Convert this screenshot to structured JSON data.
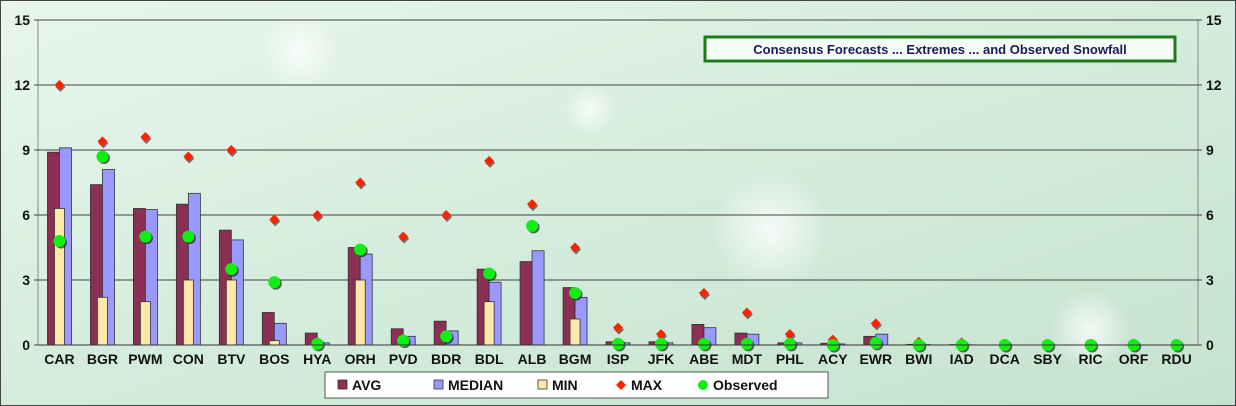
{
  "chart_data": {
    "type": "bar",
    "title": "Consensus Forecasts ... Extremes ... and Observed Snowfall",
    "categories": [
      "CAR",
      "BGR",
      "PWM",
      "CON",
      "BTV",
      "BOS",
      "HYA",
      "ORH",
      "PVD",
      "BDR",
      "BDL",
      "ALB",
      "BGM",
      "ISP",
      "JFK",
      "ABE",
      "MDT",
      "PHL",
      "ACY",
      "EWR",
      "BWI",
      "IAD",
      "DCA",
      "SBY",
      "RIC",
      "ORF",
      "RDU"
    ],
    "ylim": [
      0,
      15
    ],
    "yticks": [
      0,
      3,
      6,
      9,
      12,
      15
    ],
    "grid": true,
    "legend_position": "bottom",
    "series": [
      {
        "name": "AVG",
        "kind": "bar",
        "color": "#8b2f55",
        "values": [
          8.9,
          7.4,
          6.3,
          6.5,
          5.3,
          1.5,
          0.55,
          4.5,
          0.75,
          1.1,
          3.5,
          3.85,
          2.65,
          0.15,
          0.15,
          0.95,
          0.55,
          0.1,
          0.08,
          0.4,
          0.03,
          0.02,
          0,
          0,
          0,
          0,
          0
        ]
      },
      {
        "name": "MEDIAN",
        "kind": "bar",
        "color": "#9999ff",
        "values": [
          9.1,
          8.1,
          6.25,
          7.0,
          4.85,
          1.0,
          0.1,
          4.2,
          0.4,
          0.65,
          2.9,
          4.35,
          2.2,
          0.1,
          0.1,
          0.8,
          0.5,
          0.1,
          0.05,
          0.5,
          0.02,
          0.01,
          0,
          0,
          0,
          0,
          0
        ]
      },
      {
        "name": "MIN",
        "kind": "bar",
        "color": "#ffe8a8",
        "values": [
          6.3,
          2.2,
          2.0,
          3.0,
          3.0,
          0.2,
          0,
          3.0,
          0,
          0,
          2.0,
          0,
          1.2,
          0,
          0,
          0,
          0,
          0,
          0,
          0,
          0,
          0,
          0,
          0,
          0,
          0,
          0
        ]
      },
      {
        "name": "MAX",
        "kind": "diamond",
        "color": "#ff2200",
        "values": [
          12.0,
          9.4,
          9.6,
          8.7,
          9.0,
          5.8,
          6.0,
          7.5,
          5.0,
          6.0,
          8.5,
          6.5,
          4.5,
          0.8,
          0.5,
          2.4,
          1.5,
          0.5,
          0.25,
          1.0,
          0.15,
          0.12,
          0,
          0,
          0,
          0,
          0
        ]
      },
      {
        "name": "Observed",
        "kind": "circle",
        "color": "#11ee11",
        "values": [
          4.8,
          8.7,
          5.0,
          5.0,
          3.5,
          2.9,
          0.05,
          4.4,
          0.2,
          0.4,
          3.3,
          5.5,
          2.4,
          0.05,
          0.05,
          0.05,
          0.05,
          0.05,
          0,
          0.1,
          0,
          0,
          0,
          0,
          0,
          0,
          0
        ]
      }
    ]
  }
}
